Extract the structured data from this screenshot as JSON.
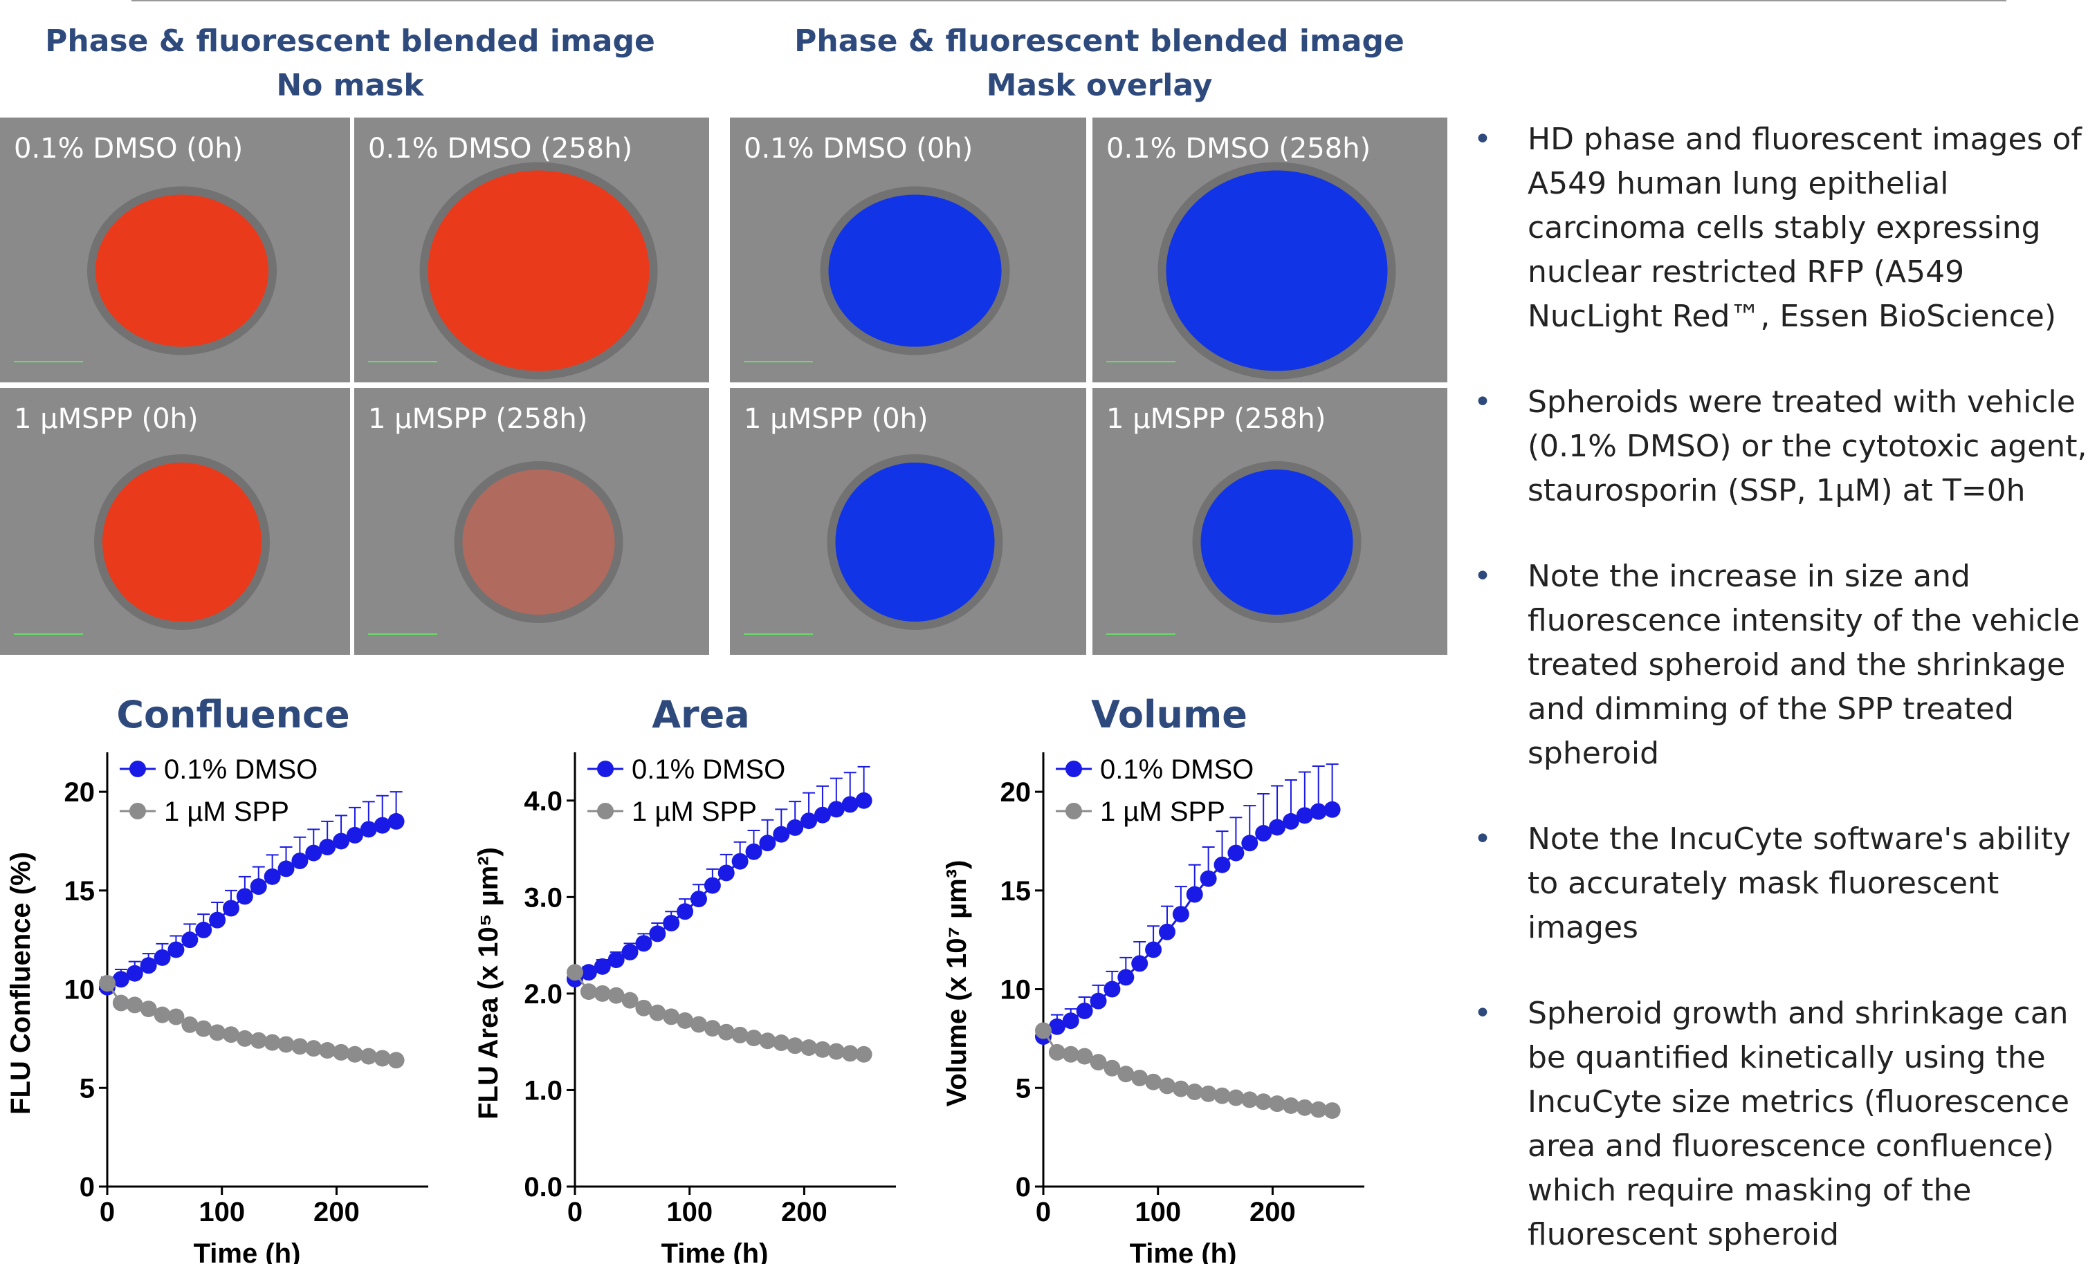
{
  "headers": [
    {
      "line1": "Phase & fluorescent blended  image",
      "line2": "No mask"
    },
    {
      "line1": "Phase & fluorescent blended image",
      "line2": "Mask overlay"
    }
  ],
  "image_labels": [
    "0.1% DMSO (0h)",
    "0.1% DMSO  (258h)",
    "0.1% DMSO (0h)",
    "0.1% DMSO  (258h)",
    "1 µMSPP (0h)",
    "1 µMSPP (258h)",
    "1 µMSPP (0h)",
    "1 µMSPP (258h)"
  ],
  "bullets": [
    "HD phase and fluorescent images of A549 human lung epithelial carcinoma cells stably expressing nuclear restricted RFP (A549 NucLight Red™, Essen BioScience)",
    "Spheroids were treated with vehicle (0.1% DMSO) or the cytotoxic agent, staurosporin (SSP, 1µM) at T=0h",
    "Note the increase in size and fluorescence intensity of the vehicle treated spheroid and the shrinkage and dimming of the SPP treated spheroid",
    "Note the IncuCyte software's ability to accurately mask fluorescent images",
    "Spheroid growth and shrinkage can be quantified kinetically using the IncuCyte size metrics (fluorescence area and fluorescence confluence) which require masking of the fluorescent spheroid"
  ],
  "chart_data": [
    {
      "type": "line",
      "title": "Confluence",
      "x_label": "Time (h)",
      "y_label": "FLU Confluence (%)",
      "x": [
        0,
        12,
        24,
        36,
        48,
        60,
        72,
        84,
        96,
        108,
        120,
        132,
        144,
        156,
        168,
        180,
        192,
        204,
        216,
        228,
        240,
        252
      ],
      "xlim": [
        0,
        280
      ],
      "xticks": [
        0,
        100,
        200
      ],
      "ylim": [
        0,
        22
      ],
      "yticks": [
        0,
        5,
        10,
        15,
        20
      ],
      "series": [
        {
          "name": "0.1% DMSO",
          "color": "#1a1ae6",
          "values": [
            10.1,
            10.5,
            10.8,
            11.2,
            11.6,
            12.0,
            12.5,
            13.0,
            13.5,
            14.1,
            14.7,
            15.2,
            15.7,
            16.1,
            16.5,
            16.9,
            17.2,
            17.5,
            17.8,
            18.1,
            18.3,
            18.5
          ],
          "errors": [
            0.5,
            0.5,
            0.6,
            0.6,
            0.7,
            0.7,
            0.8,
            0.8,
            0.9,
            0.9,
            1.0,
            1.0,
            1.1,
            1.1,
            1.2,
            1.2,
            1.3,
            1.3,
            1.4,
            1.4,
            1.5,
            1.5
          ]
        },
        {
          "name": "1 µM SPP",
          "color": "#8c8c8c",
          "values": [
            10.3,
            9.3,
            9.2,
            9.0,
            8.7,
            8.6,
            8.2,
            8.0,
            7.8,
            7.7,
            7.5,
            7.4,
            7.3,
            7.2,
            7.1,
            7.0,
            6.9,
            6.8,
            6.7,
            6.6,
            6.5,
            6.4
          ],
          "errors": [
            0.2,
            0.2,
            0.2,
            0.2,
            0.2,
            0.2,
            0.2,
            0.2,
            0.2,
            0.2,
            0.2,
            0.2,
            0.2,
            0.2,
            0.2,
            0.2,
            0.2,
            0.2,
            0.2,
            0.2,
            0.2,
            0.2
          ]
        }
      ]
    },
    {
      "type": "line",
      "title": "Area",
      "x_label": "Time (h)",
      "y_label": "FLU Area (x 10⁵ µm²)",
      "x": [
        0,
        12,
        24,
        36,
        48,
        60,
        72,
        84,
        96,
        108,
        120,
        132,
        144,
        156,
        168,
        180,
        192,
        204,
        216,
        228,
        240,
        252
      ],
      "xlim": [
        0,
        280
      ],
      "xticks": [
        0,
        100,
        200
      ],
      "ylim": [
        0,
        4.5
      ],
      "yticks": [
        {
          "value": 0,
          "label": "0.0"
        },
        {
          "value": 1,
          "label": "1.0"
        },
        {
          "value": 2,
          "label": "2.0"
        },
        {
          "value": 3,
          "label": "3.0"
        },
        {
          "value": 4,
          "label": "4.0"
        }
      ],
      "series": [
        {
          "name": "0.1% DMSO",
          "color": "#1a1ae6",
          "values": [
            2.15,
            2.22,
            2.28,
            2.35,
            2.43,
            2.52,
            2.62,
            2.73,
            2.85,
            2.98,
            3.12,
            3.25,
            3.37,
            3.47,
            3.56,
            3.65,
            3.72,
            3.79,
            3.85,
            3.91,
            3.96,
            4.0
          ],
          "errors": [
            0.05,
            0.06,
            0.07,
            0.08,
            0.09,
            0.1,
            0.11,
            0.12,
            0.13,
            0.15,
            0.17,
            0.19,
            0.2,
            0.22,
            0.24,
            0.26,
            0.27,
            0.29,
            0.3,
            0.32,
            0.33,
            0.35
          ]
        },
        {
          "name": "1 µM SPP",
          "color": "#8c8c8c",
          "values": [
            2.22,
            2.02,
            2.0,
            1.98,
            1.93,
            1.85,
            1.8,
            1.76,
            1.72,
            1.68,
            1.64,
            1.6,
            1.57,
            1.54,
            1.51,
            1.49,
            1.46,
            1.44,
            1.42,
            1.4,
            1.38,
            1.37
          ],
          "errors": [
            0.04,
            0.04,
            0.04,
            0.04,
            0.04,
            0.04,
            0.04,
            0.04,
            0.04,
            0.04,
            0.04,
            0.04,
            0.04,
            0.04,
            0.04,
            0.04,
            0.04,
            0.04,
            0.04,
            0.04,
            0.04,
            0.04
          ]
        }
      ]
    },
    {
      "type": "line",
      "title": "Volume",
      "x_label": "Time (h)",
      "y_label": "Volume (x 10⁷ µm³)",
      "x": [
        0,
        12,
        24,
        36,
        48,
        60,
        72,
        84,
        96,
        108,
        120,
        132,
        144,
        156,
        168,
        180,
        192,
        204,
        216,
        228,
        240,
        252
      ],
      "xlim": [
        0,
        280
      ],
      "xticks": [
        0,
        100,
        200
      ],
      "ylim": [
        0,
        22
      ],
      "yticks": [
        0,
        5,
        10,
        15,
        20
      ],
      "series": [
        {
          "name": "0.1% DMSO",
          "color": "#1a1ae6",
          "values": [
            7.6,
            8.1,
            8.4,
            8.9,
            9.4,
            10.0,
            10.6,
            11.3,
            12.0,
            12.9,
            13.8,
            14.8,
            15.6,
            16.3,
            16.9,
            17.4,
            17.9,
            18.2,
            18.5,
            18.8,
            19.0,
            19.1
          ],
          "errors": [
            0.5,
            0.6,
            0.6,
            0.7,
            0.8,
            0.9,
            1.0,
            1.1,
            1.2,
            1.3,
            1.4,
            1.5,
            1.6,
            1.7,
            1.8,
            1.9,
            2.0,
            2.1,
            2.1,
            2.2,
            2.3,
            2.3
          ]
        },
        {
          "name": "1 µM SPP",
          "color": "#8c8c8c",
          "values": [
            7.9,
            6.8,
            6.7,
            6.6,
            6.3,
            6.0,
            5.7,
            5.5,
            5.3,
            5.1,
            4.95,
            4.8,
            4.7,
            4.6,
            4.5,
            4.4,
            4.3,
            4.2,
            4.1,
            4.0,
            3.9,
            3.85
          ],
          "errors": [
            0.2,
            0.2,
            0.2,
            0.2,
            0.2,
            0.2,
            0.2,
            0.2,
            0.2,
            0.2,
            0.2,
            0.2,
            0.2,
            0.2,
            0.2,
            0.2,
            0.2,
            0.2,
            0.2,
            0.2,
            0.2,
            0.2
          ]
        }
      ]
    }
  ]
}
